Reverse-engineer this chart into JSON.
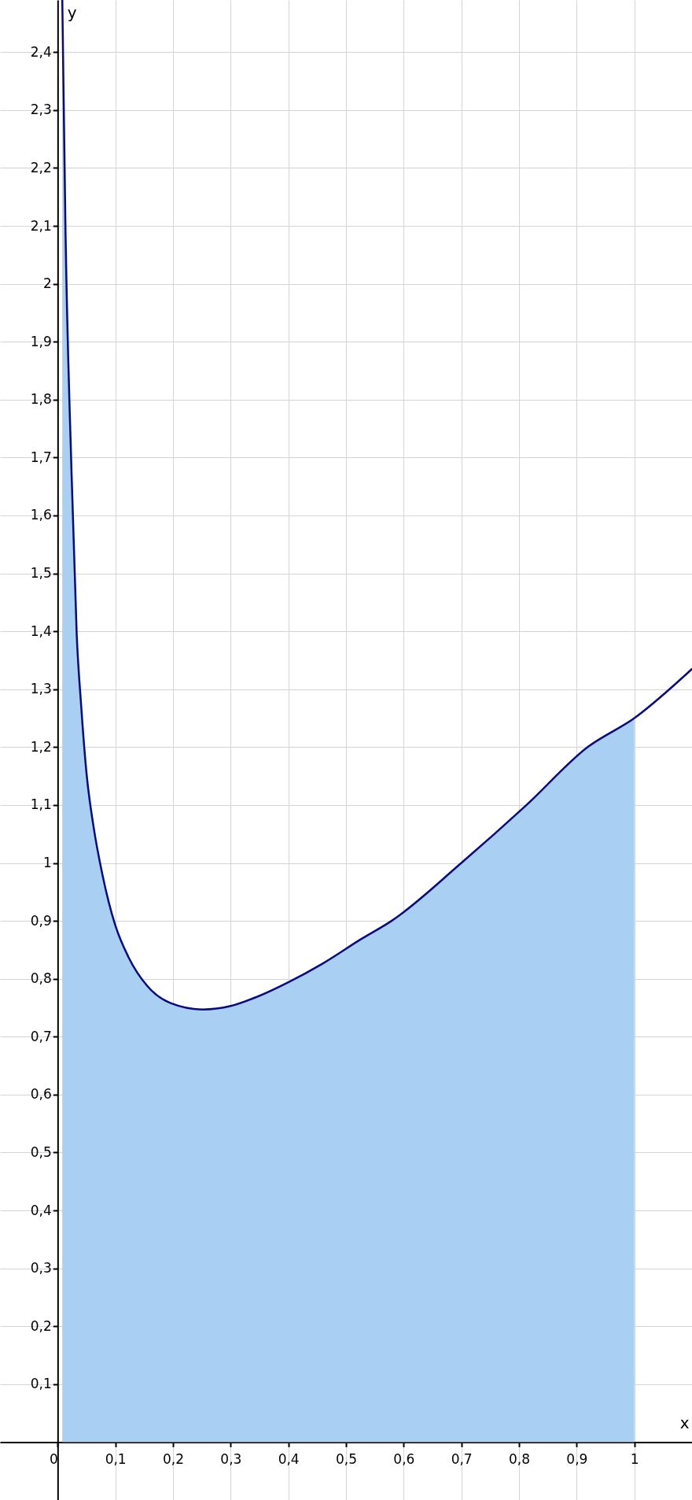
{
  "chart_data": {
    "type": "line",
    "xlabel": "x",
    "ylabel": "y",
    "xlim": [
      -0.1,
      1.1
    ],
    "ylim": [
      -0.1,
      2.49
    ],
    "xticks": [
      0,
      {
        "value": 0.1,
        "label": "0,1"
      },
      {
        "value": 0.2,
        "label": "0,2"
      },
      {
        "value": 0.3,
        "label": "0,3"
      },
      {
        "value": 0.4,
        "label": "0,4"
      },
      {
        "value": 0.5,
        "label": "0,5"
      },
      {
        "value": 0.6,
        "label": "0,6"
      },
      {
        "value": 0.7,
        "label": "0,7"
      },
      {
        "value": 0.8,
        "label": "0,8"
      },
      {
        "value": 0.9,
        "label": "0,9"
      },
      1
    ],
    "yticks": [
      {
        "value": 0.1,
        "label": "0,1"
      },
      {
        "value": 0.2,
        "label": "0,2"
      },
      {
        "value": 0.3,
        "label": "0,3"
      },
      {
        "value": 0.4,
        "label": "0,4"
      },
      {
        "value": 0.5,
        "label": "0,5"
      },
      {
        "value": 0.6,
        "label": "0,6"
      },
      {
        "value": 0.7,
        "label": "0,7"
      },
      {
        "value": 0.8,
        "label": "0,8"
      },
      {
        "value": 0.9,
        "label": "0,9"
      },
      1,
      {
        "value": 1.1,
        "label": "1,1"
      },
      {
        "value": 1.2,
        "label": "1,2"
      },
      {
        "value": 1.3,
        "label": "1,3"
      },
      {
        "value": 1.4,
        "label": "1,4"
      },
      {
        "value": 1.5,
        "label": "1,5"
      },
      {
        "value": 1.6,
        "label": "1,6"
      },
      {
        "value": 1.7,
        "label": "1,7"
      },
      {
        "value": 1.8,
        "label": "1,8"
      },
      {
        "value": 1.9,
        "label": "1,9"
      },
      2,
      {
        "value": 2.1,
        "label": "2,1"
      },
      {
        "value": 2.2,
        "label": "2,2"
      },
      {
        "value": 2.3,
        "label": "2,3"
      },
      {
        "value": 2.4,
        "label": "2,4"
      }
    ],
    "grid": true,
    "marker": "none",
    "line_style": "solid",
    "series": [
      {
        "type": "area",
        "color": "#a9cff2",
        "x": [
          0.008,
          0.0136,
          0.024,
          0.033,
          0.041,
          0.05,
          0.062,
          0.078,
          0.1,
          0.123,
          0.155,
          0.196,
          0.252,
          0.3,
          0.346,
          0.4,
          0.459,
          0.527,
          0.579,
          0.7,
          0.813,
          0.919,
          1.0
        ],
        "values": [
          2.49,
          2.09,
          1.676,
          1.395,
          1.268,
          1.155,
          1.064,
          0.978,
          0.892,
          0.837,
          0.788,
          0.758,
          0.747,
          0.753,
          0.769,
          0.794,
          0.826,
          0.869,
          0.9,
          1.0,
          1.1,
          1.2,
          1.25
        ]
      },
      {
        "color": "#0a0a80",
        "x": [
          0.008,
          0.0136,
          0.024,
          0.033,
          0.041,
          0.05,
          0.062,
          0.078,
          0.1,
          0.123,
          0.155,
          0.196,
          0.252,
          0.3,
          0.346,
          0.4,
          0.459,
          0.527,
          0.579,
          0.7,
          0.813,
          0.919,
          1.0,
          1.1
        ],
        "values": [
          2.49,
          2.09,
          1.676,
          1.395,
          1.268,
          1.155,
          1.064,
          0.978,
          0.892,
          0.837,
          0.788,
          0.758,
          0.747,
          0.753,
          0.769,
          0.794,
          0.826,
          0.869,
          0.9,
          1.0,
          1.1,
          1.2,
          1.25,
          1.335
        ]
      }
    ]
  }
}
